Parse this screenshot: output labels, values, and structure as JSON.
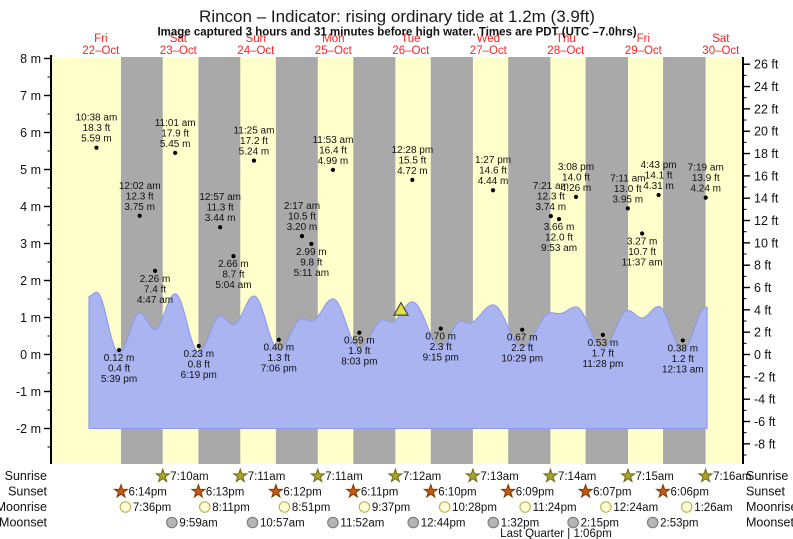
{
  "title": "Rincon – Indicator: rising  ordinary tide at 1.2m (3.9ft)",
  "subtitle": "Image captured 3 hours and 31 minutes before high water. Times are PDT (UTC –7.0hrs)",
  "days": [
    {
      "dow": "Fri",
      "date": "22–Oct"
    },
    {
      "dow": "Sat",
      "date": "23–Oct"
    },
    {
      "dow": "Sun",
      "date": "24–Oct"
    },
    {
      "dow": "Mon",
      "date": "25–Oct"
    },
    {
      "dow": "Tue",
      "date": "26–Oct"
    },
    {
      "dow": "Wed",
      "date": "27–Oct"
    },
    {
      "dow": "Thu",
      "date": "28–Oct"
    },
    {
      "dow": "Fri",
      "date": "29–Oct"
    },
    {
      "dow": "Sat",
      "date": "30–Oct"
    }
  ],
  "colors": {
    "day_band": "#ffffcc",
    "night_band": "#a9a9a9",
    "tide_fill": "#aab4f0",
    "tide_stroke": "#8d9bee",
    "day_label": "#ff2222",
    "annotation": "#111111",
    "sunrise_star": "#a8a32c",
    "sunrise_star_edge": "#6e6a12",
    "sunset_star": "#c45a10",
    "sunset_star_edge": "#7e3a06",
    "moonrise_fill": "#ffffd6",
    "moonrise_edge": "#bdb45a",
    "moonset_fill": "#b5b5b5",
    "moonset_edge": "#7f7f7f",
    "indicator_fill": "#e2e23e",
    "indicator_edge": "#444444"
  },
  "y_axis_left": {
    "unit": "m",
    "min": -2,
    "max": 8,
    "label_step": 1
  },
  "y_axis_right": {
    "unit": "ft",
    "min": -8,
    "max": 26,
    "label_step": 2
  },
  "chart_data": {
    "type": "area",
    "title": "Tide height curve",
    "x_axis": "time, Fri 22-Oct through Sat 30-Oct (day index 0-8)",
    "ylabel_left": "m",
    "ylabel_right": "ft",
    "extremes": [
      {
        "kind": "high",
        "day": 0,
        "time": "10:38 am",
        "ft_label": "18.3 ft",
        "m_label": "5.59 m",
        "m": 5.59
      },
      {
        "kind": "low",
        "day": 0,
        "time": "5:39 pm",
        "ft_label": "0.4 ft",
        "m_label": "0.12 m",
        "m": 0.12
      },
      {
        "kind": "high",
        "day": 1,
        "time": "12:02 am",
        "ft_label": "12.3 ft",
        "m_label": "3.75 m",
        "m": 3.75
      },
      {
        "kind": "low",
        "day": 1,
        "time": "4:47 am",
        "ft_label": "7.4 ft",
        "m_label": "2.26 m",
        "m": 2.26
      },
      {
        "kind": "high",
        "day": 1,
        "time": "11:01 am",
        "ft_label": "17.9 ft",
        "m_label": "5.45 m",
        "m": 5.45
      },
      {
        "kind": "low",
        "day": 1,
        "time": "6:19 pm",
        "ft_label": "0.8 ft",
        "m_label": "0.23 m",
        "m": 0.23
      },
      {
        "kind": "high",
        "day": 2,
        "time": "12:57 am",
        "ft_label": "11.3 ft",
        "m_label": "3.44 m",
        "m": 3.44
      },
      {
        "kind": "low",
        "day": 2,
        "time": "5:04 am",
        "ft_label": "8.7 ft",
        "m_label": "2.66 m",
        "m": 2.66
      },
      {
        "kind": "high",
        "day": 2,
        "time": "11:25 am",
        "ft_label": "17.2 ft",
        "m_label": "5.24 m",
        "m": 5.24
      },
      {
        "kind": "low",
        "day": 2,
        "time": "7:06 pm",
        "ft_label": "1.3 ft",
        "m_label": "0.40 m",
        "m": 0.4
      },
      {
        "kind": "high",
        "day": 3,
        "time": "2:17 am",
        "ft_label": "10.5 ft",
        "m_label": "3.20 m",
        "m": 3.2
      },
      {
        "kind": "low",
        "day": 3,
        "time": "5:11 am",
        "ft_label": "9.8 ft",
        "m_label": "2.99 m",
        "m": 2.99
      },
      {
        "kind": "high",
        "day": 3,
        "time": "11:53 am",
        "ft_label": "16.4 ft",
        "m_label": "4.99 m",
        "m": 4.99
      },
      {
        "kind": "low",
        "day": 3,
        "time": "8:03 pm",
        "ft_label": "1.9 ft",
        "m_label": "0.59 m",
        "m": 0.59
      },
      {
        "kind": "high",
        "day": 4,
        "time": "12:28 pm",
        "ft_label": "15.5 ft",
        "m_label": "4.72 m",
        "m": 4.72
      },
      {
        "kind": "low",
        "day": 4,
        "time": "9:15 pm",
        "ft_label": "2.3 ft",
        "m_label": "0.70 m",
        "m": 0.7
      },
      {
        "kind": "high",
        "day": 5,
        "time": "1:27 pm",
        "ft_label": "14.6 ft",
        "m_label": "4.44 m",
        "m": 4.44
      },
      {
        "kind": "low",
        "day": 5,
        "time": "10:29 pm",
        "ft_label": "2.2 ft",
        "m_label": "0.67 m",
        "m": 0.67
      },
      {
        "kind": "high",
        "day": 6,
        "time": "7:21 am",
        "ft_label": "12.3 ft",
        "m_label": "3.74 m",
        "m": 3.74
      },
      {
        "kind": "low",
        "day": 6,
        "time": "9:53 am",
        "ft_label": "12.0 ft",
        "m_label": "3.66 m",
        "m": 3.66
      },
      {
        "kind": "high",
        "day": 6,
        "time": "3:08 pm",
        "ft_label": "14.0 ft",
        "m_label": "4.26 m",
        "m": 4.26
      },
      {
        "kind": "low",
        "day": 6,
        "time": "11:28 pm",
        "ft_label": "1.7 ft",
        "m_label": "0.53 m",
        "m": 0.53
      },
      {
        "kind": "high",
        "day": 7,
        "time": "7:11 am",
        "ft_label": "13.0 ft",
        "m_label": "3.95 m",
        "m": 3.95
      },
      {
        "kind": "low",
        "day": 7,
        "time": "11:37 am",
        "ft_label": "10.7 ft",
        "m_label": "3.27 m",
        "m": 3.27
      },
      {
        "kind": "high",
        "day": 7,
        "time": "4:43 pm",
        "ft_label": "14.1 ft",
        "m_label": "4.31 m",
        "m": 4.31
      },
      {
        "kind": "low",
        "day": 8,
        "time": "12:13 am",
        "ft_label": "1.2 ft",
        "m_label": "0.38 m",
        "m": 0.38
      },
      {
        "kind": "high",
        "day": 8,
        "time": "7:19 am",
        "ft_label": "13.9 ft",
        "m_label": "4.24 m",
        "m": 4.24
      }
    ],
    "unlabeled_curve_points": [
      {
        "day": 4,
        "time": "3:30 am",
        "m": 3.1
      },
      {
        "day": 4,
        "time": "6:00 am",
        "m": 2.9
      },
      {
        "day": 5,
        "time": "3:30 am",
        "m": 3.0
      },
      {
        "day": 5,
        "time": "6:00 am",
        "m": 2.8
      }
    ],
    "curve_start": {
      "day": 0,
      "time": "8:20 am",
      "m": 5.2
    },
    "curve_end": {
      "day": 8,
      "time": "7:45 am",
      "m": 4.2
    },
    "indicator": {
      "day": 4,
      "time": "8:57 am",
      "m": 1.2
    }
  },
  "astro": {
    "sunrise": {
      "label": "Sunrise",
      "events": [
        {
          "day": 1,
          "time": "7:10am"
        },
        {
          "day": 2,
          "time": "7:11am"
        },
        {
          "day": 3,
          "time": "7:11am"
        },
        {
          "day": 4,
          "time": "7:12am"
        },
        {
          "day": 5,
          "time": "7:13am"
        },
        {
          "day": 6,
          "time": "7:14am"
        },
        {
          "day": 7,
          "time": "7:15am"
        },
        {
          "day": 8,
          "time": "7:16am"
        }
      ]
    },
    "sunset": {
      "label": "Sunset",
      "events": [
        {
          "day": 0,
          "time": "6:14pm"
        },
        {
          "day": 1,
          "time": "6:13pm"
        },
        {
          "day": 2,
          "time": "6:12pm"
        },
        {
          "day": 3,
          "time": "6:11pm"
        },
        {
          "day": 4,
          "time": "6:10pm"
        },
        {
          "day": 5,
          "time": "6:09pm"
        },
        {
          "day": 6,
          "time": "6:07pm"
        },
        {
          "day": 7,
          "time": "6:06pm"
        }
      ]
    },
    "moonrise": {
      "label": "Moonrise",
      "events": [
        {
          "day": 0,
          "time": "7:36pm"
        },
        {
          "day": 1,
          "time": "8:11pm"
        },
        {
          "day": 2,
          "time": "8:51pm"
        },
        {
          "day": 3,
          "time": "9:37pm"
        },
        {
          "day": 4,
          "time": "10:28pm"
        },
        {
          "day": 5,
          "time": "11:24pm"
        },
        {
          "day": 7,
          "time": "12:24am"
        },
        {
          "day": 8,
          "time": "1:26am"
        }
      ]
    },
    "moonset": {
      "label": "Moonset",
      "events": [
        {
          "day": 1,
          "time": "9:59am"
        },
        {
          "day": 2,
          "time": "10:57am"
        },
        {
          "day": 3,
          "time": "11:52am"
        },
        {
          "day": 4,
          "time": "12:44pm"
        },
        {
          "day": 5,
          "time": "1:32pm"
        },
        {
          "day": 6,
          "time": "2:15pm"
        },
        {
          "day": 7,
          "time": "2:53pm"
        }
      ]
    },
    "footer": "Last Quarter | 1:06pm"
  }
}
